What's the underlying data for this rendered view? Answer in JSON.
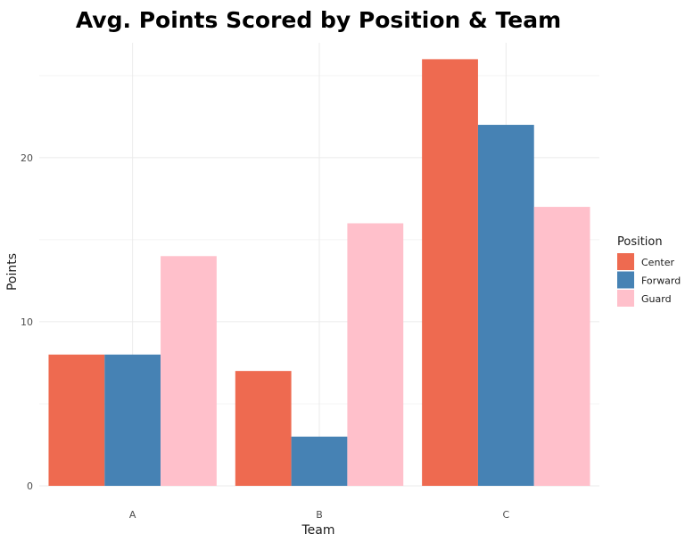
{
  "chart_data": {
    "type": "bar",
    "title": "Avg. Points Scored by Position & Team",
    "xlabel": "Team",
    "ylabel": "Points",
    "categories": [
      "A",
      "B",
      "C"
    ],
    "series": [
      {
        "name": "Center",
        "color": "#EE6A50",
        "values": [
          8,
          7,
          26
        ]
      },
      {
        "name": "Forward",
        "color": "#4682B4",
        "values": [
          8,
          3,
          22
        ]
      },
      {
        "name": "Guard",
        "color": "#FFC0CB",
        "values": [
          14,
          16,
          17
        ]
      }
    ],
    "ylim": [
      0,
      27
    ],
    "yticks": [
      0,
      10,
      20
    ],
    "grid": true,
    "legend": {
      "title": "Position",
      "placement": "right"
    }
  }
}
